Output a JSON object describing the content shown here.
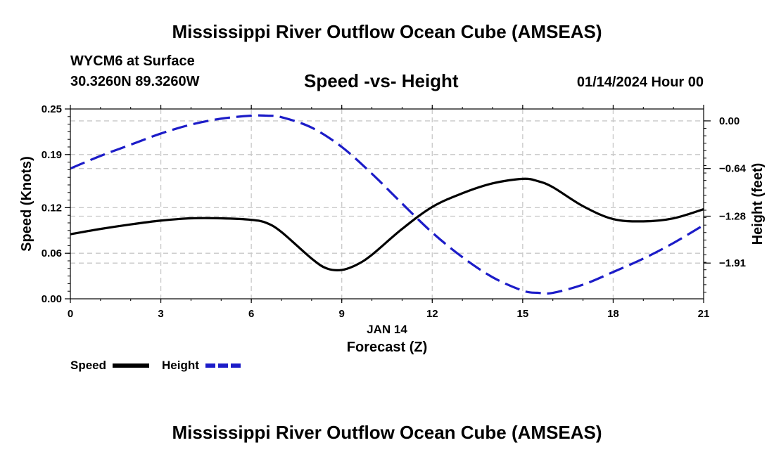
{
  "page": {
    "title": "Mississippi River Outflow Ocean Cube (AMSEAS)",
    "footer_title": "Mississippi River Outflow Ocean Cube (AMSEAS)"
  },
  "header": {
    "station": "WYCM6 at Surface",
    "coords": "30.3260N  89.3260W",
    "chart_title": "Speed -vs- Height",
    "datetime": "01/14/2024 Hour 00"
  },
  "legend": {
    "speed_label": "Speed",
    "height_label": "Height"
  },
  "chart_data": {
    "type": "line",
    "title": "Speed -vs- Height",
    "xlabel": "Forecast (Z)",
    "xlabel_date": "JAN 14",
    "ylabel": "Speed (Knots)",
    "y2label": "Height (feet)",
    "xlim": [
      0,
      21
    ],
    "ylim": [
      0,
      0.25
    ],
    "y2lim": [
      -2.39,
      0.16
    ],
    "xticks": [
      0,
      3,
      6,
      9,
      12,
      15,
      18,
      21
    ],
    "xtick_labels": [
      "0",
      "3",
      "6",
      "9",
      "12",
      "15",
      "18",
      "21"
    ],
    "yticks": [
      0.0,
      0.06,
      0.12,
      0.19,
      0.25
    ],
    "ytick_labels": [
      "0.00",
      "0.06",
      "0.12",
      "0.19",
      "0.25"
    ],
    "y2ticks": [
      0.0,
      -0.64,
      -1.28,
      -1.91
    ],
    "y2tick_labels": [
      "0.00",
      "−0.64",
      "−1.28",
      "−1.91"
    ],
    "grid": true,
    "series": [
      {
        "name": "Speed",
        "axis": "left",
        "color": "#000000",
        "style": "solid",
        "x": [
          0,
          1,
          2,
          3,
          4,
          5,
          6,
          6.5,
          7,
          8,
          8.5,
          9,
          9.5,
          10,
          11,
          12,
          13,
          14,
          15,
          15.5,
          16,
          17,
          18,
          19,
          20,
          21
        ],
        "values": [
          0.085,
          0.092,
          0.098,
          0.103,
          0.106,
          0.106,
          0.104,
          0.1,
          0.088,
          0.053,
          0.04,
          0.038,
          0.045,
          0.058,
          0.092,
          0.121,
          0.139,
          0.152,
          0.158,
          0.155,
          0.147,
          0.122,
          0.105,
          0.102,
          0.106,
          0.118
        ]
      },
      {
        "name": "Height",
        "axis": "right",
        "color": "#1c1cc8",
        "style": "dashed",
        "x": [
          0,
          1,
          2,
          3,
          4,
          5,
          6,
          6.5,
          7,
          8,
          9,
          10,
          11,
          12,
          13,
          14,
          15,
          15.5,
          16,
          17,
          18,
          19,
          20,
          21
        ],
        "values": [
          -0.64,
          -0.47,
          -0.32,
          -0.17,
          -0.05,
          0.03,
          0.07,
          0.07,
          0.05,
          -0.09,
          -0.35,
          -0.71,
          -1.11,
          -1.5,
          -1.83,
          -2.1,
          -2.28,
          -2.31,
          -2.31,
          -2.2,
          -2.03,
          -1.85,
          -1.64,
          -1.4
        ]
      }
    ]
  }
}
